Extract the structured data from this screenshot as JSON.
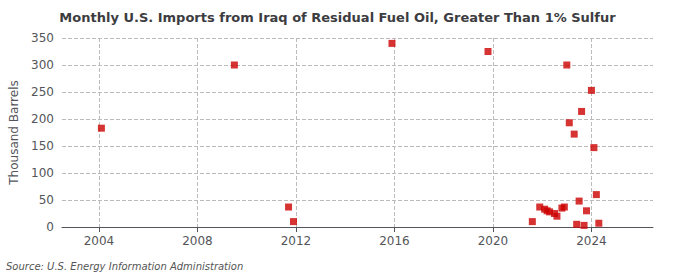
{
  "chart_data": {
    "type": "scatter",
    "title": "Monthly U.S. Imports from Iraq of Residual Fuel Oil, Greater Than 1% Sulfur",
    "ylabel": "Thousand Barrels",
    "annotation": "Source: U.S. Energy Information Administration",
    "x": [
      2004.1,
      2009.5,
      2011.7,
      2011.9,
      2015.9,
      2019.8,
      2021.6,
      2021.9,
      2022.1,
      2022.2,
      2022.3,
      2022.5,
      2022.6,
      2022.8,
      2022.9,
      2023.0,
      2023.1,
      2023.3,
      2023.4,
      2023.5,
      2023.6,
      2023.7,
      2023.8,
      2024.0,
      2024.1,
      2024.2,
      2024.3
    ],
    "values": [
      183,
      300,
      37,
      10,
      340,
      325,
      10,
      37,
      33,
      30,
      28,
      25,
      20,
      35,
      37,
      300,
      193,
      172,
      5,
      48,
      214,
      3,
      30,
      253,
      147,
      60,
      7
    ],
    "color": "#cc0000",
    "marker": "square",
    "xlim": [
      2002.5,
      2026.5
    ],
    "xticks": [
      2004,
      2008,
      2012,
      2016,
      2020,
      2024
    ],
    "ylim": [
      0,
      350
    ],
    "yticks": [
      0,
      50,
      100,
      150,
      200,
      250,
      300,
      350
    ],
    "grid": true
  }
}
